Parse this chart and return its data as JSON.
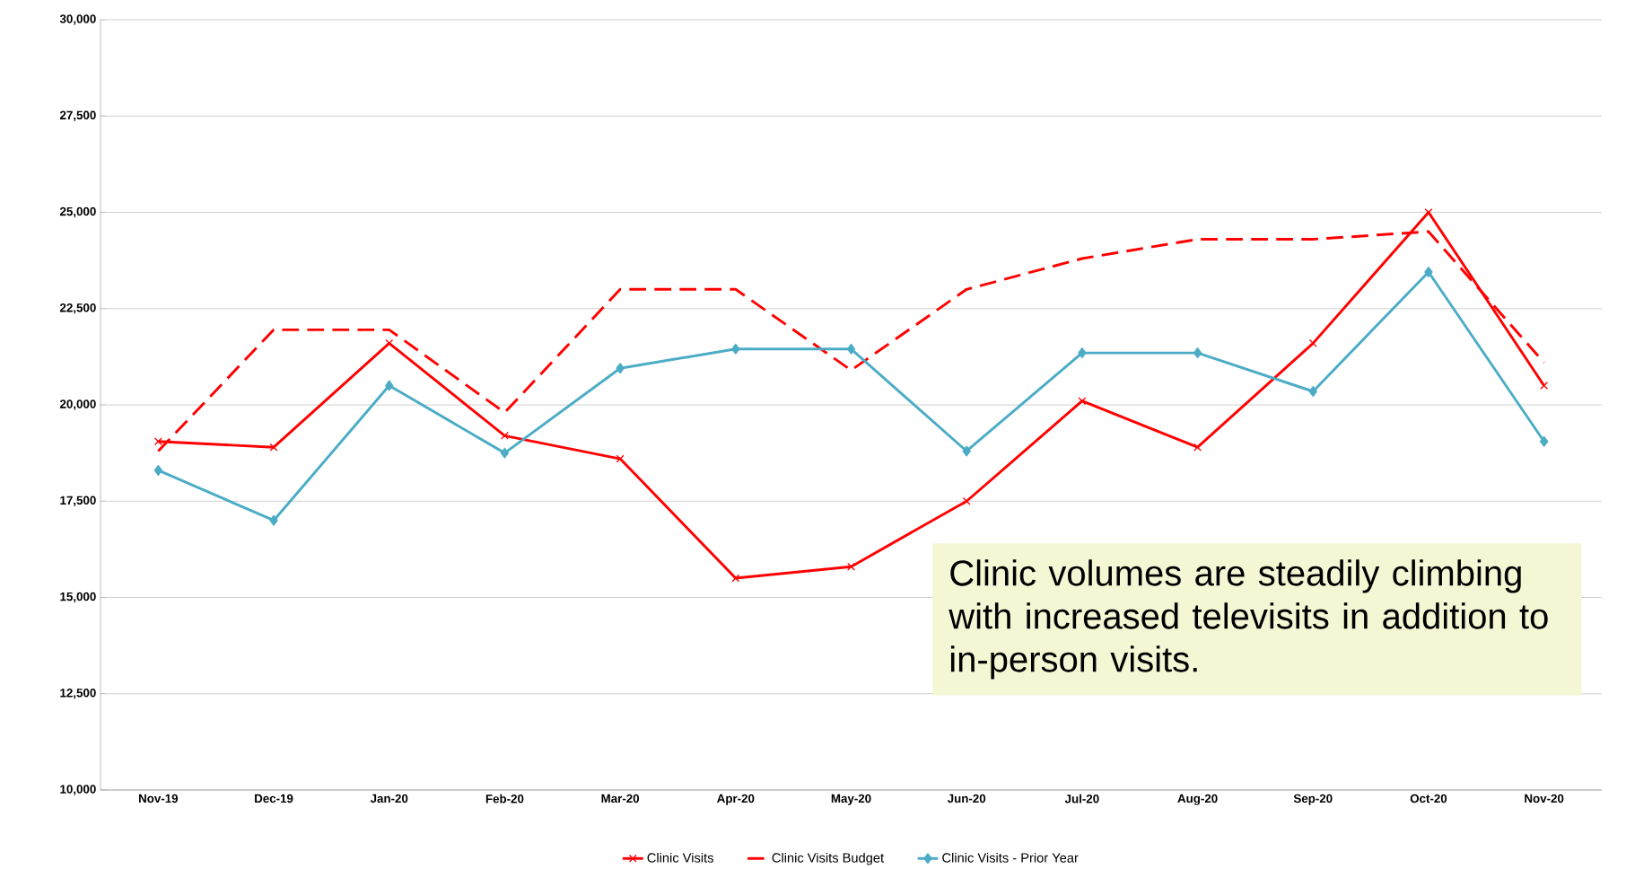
{
  "chart_data": {
    "type": "line",
    "categories": [
      "Nov-19",
      "Dec-19",
      "Jan-20",
      "Feb-20",
      "Mar-20",
      "Apr-20",
      "May-20",
      "Jun-20",
      "Jul-20",
      "Aug-20",
      "Sep-20",
      "Oct-20",
      "Nov-20"
    ],
    "series": [
      {
        "name": "Clinic Visits",
        "color": "#ff0000",
        "marker": "cross",
        "line_style": "solid",
        "values": [
          19050,
          18900,
          21600,
          19200,
          18600,
          15500,
          15800,
          17500,
          20100,
          18900,
          21600,
          25000,
          20500
        ]
      },
      {
        "name": "Clinic Visits Budget",
        "color": "#ff0000",
        "marker": "none",
        "line_style": "dashed",
        "values": [
          18800,
          21950,
          21950,
          19800,
          23000,
          23000,
          20900,
          23000,
          23800,
          24300,
          24300,
          24500,
          21100
        ]
      },
      {
        "name": "Clinic Visits - Prior Year",
        "color": "#4bacc6",
        "marker": "diamond",
        "line_style": "solid",
        "values": [
          18300,
          17000,
          20500,
          18750,
          20950,
          21450,
          21450,
          18800,
          21350,
          21350,
          20350,
          23450,
          19050
        ]
      }
    ],
    "ylim": [
      10000,
      30000
    ],
    "yticks": [
      {
        "value": 10000,
        "label": "10,000"
      },
      {
        "value": 12500,
        "label": "12,500"
      },
      {
        "value": 15000,
        "label": "15,000"
      },
      {
        "value": 17500,
        "label": "17,500"
      },
      {
        "value": 20000,
        "label": "20,000"
      },
      {
        "value": 22500,
        "label": "22,500"
      },
      {
        "value": 25000,
        "label": "25,000"
      },
      {
        "value": 27500,
        "label": "27,500"
      },
      {
        "value": 30000,
        "label": "30,000"
      }
    ],
    "grid": "y",
    "legend": "bottom",
    "annotations": [
      "Clinic volumes are steadily climbing with increased televisits in addition to in-person visits."
    ]
  }
}
